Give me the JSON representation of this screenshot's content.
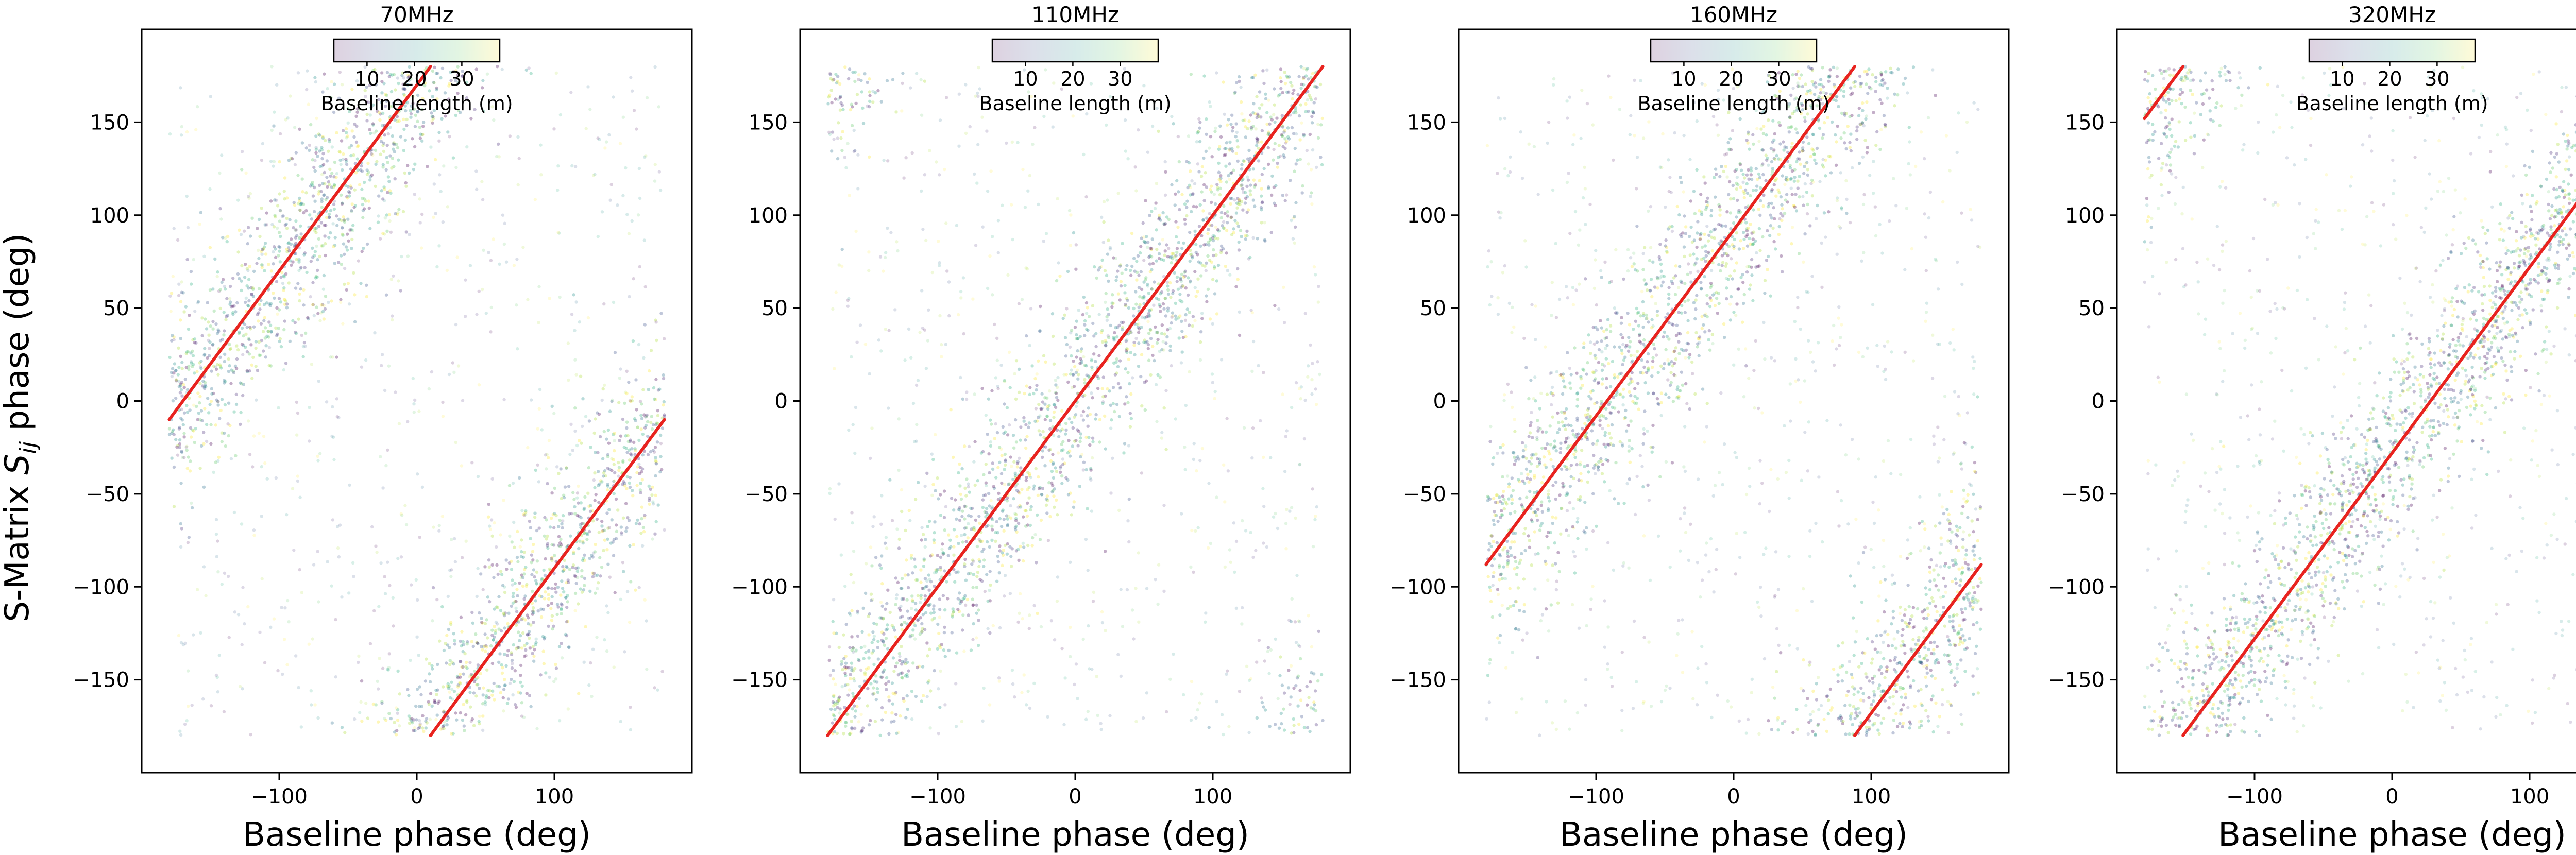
{
  "chart_data": [
    {
      "type": "scatter",
      "title": "70MHz",
      "xlabel": "Baseline phase (deg)",
      "ylabel": "S-Matrix $S_{ij}$ phase (deg)",
      "ylabel_text": {
        "main": "S-Matrix ",
        "symbol": "S",
        "sub": "ij",
        "tail": " phase (deg)"
      },
      "xlim": [
        -200,
        200
      ],
      "ylim": [
        -200,
        200
      ],
      "xticks": [
        -100,
        0,
        100
      ],
      "xtick_labels": [
        "−100",
        "0",
        "100"
      ],
      "yticks": [
        -150,
        -100,
        -50,
        0,
        50,
        100,
        150
      ],
      "ytick_labels": [
        "−150",
        "−100",
        "−50",
        "0",
        "50",
        "100",
        "150"
      ],
      "fit_line": {
        "slope": 1,
        "offset": 170,
        "wrap": 360,
        "color": "#e8231f"
      },
      "scatter_spread_deg": 28,
      "colorbar": {
        "label": "Baseline length (m)",
        "ticks": [
          10,
          20,
          30
        ],
        "range": [
          3,
          38
        ],
        "cmap": "viridis",
        "location": "upper center"
      }
    },
    {
      "type": "scatter",
      "title": "110MHz",
      "xlabel": "Baseline phase (deg)",
      "ylabel": "",
      "xlim": [
        -200,
        200
      ],
      "ylim": [
        -200,
        200
      ],
      "xticks": [
        -100,
        0,
        100
      ],
      "xtick_labels": [
        "−100",
        "0",
        "100"
      ],
      "yticks": [
        -150,
        -100,
        -50,
        0,
        50,
        100,
        150
      ],
      "ytick_labels": [
        "−150",
        "−100",
        "−50",
        "0",
        "50",
        "100",
        "150"
      ],
      "fit_line": {
        "slope": 1,
        "offset": 0,
        "wrap": 360,
        "color": "#e8231f"
      },
      "scatter_spread_deg": 28,
      "colorbar": {
        "label": "Baseline length (m)",
        "ticks": [
          10,
          20,
          30
        ],
        "range": [
          3,
          38
        ],
        "cmap": "viridis",
        "location": "upper center"
      }
    },
    {
      "type": "scatter",
      "title": "160MHz",
      "xlabel": "Baseline phase (deg)",
      "ylabel": "",
      "xlim": [
        -200,
        200
      ],
      "ylim": [
        -200,
        200
      ],
      "xticks": [
        -100,
        0,
        100
      ],
      "xtick_labels": [
        "−100",
        "0",
        "100"
      ],
      "yticks": [
        -150,
        -100,
        -50,
        0,
        50,
        100,
        150
      ],
      "ytick_labels": [
        "−150",
        "−100",
        "−50",
        "0",
        "50",
        "100",
        "150"
      ],
      "fit_line": {
        "slope": 1,
        "offset": 92,
        "wrap": 360,
        "color": "#e8231f"
      },
      "scatter_spread_deg": 28,
      "colorbar": {
        "label": "Baseline length (m)",
        "ticks": [
          10,
          20,
          30
        ],
        "range": [
          3,
          38
        ],
        "cmap": "viridis",
        "location": "upper center"
      }
    },
    {
      "type": "scatter",
      "title": "320MHz",
      "xlabel": "Baseline phase (deg)",
      "ylabel": "",
      "xlim": [
        -200,
        200
      ],
      "ylim": [
        -200,
        200
      ],
      "xticks": [
        -100,
        0,
        100
      ],
      "xtick_labels": [
        "−100",
        "0",
        "100"
      ],
      "yticks": [
        -150,
        -100,
        -50,
        0,
        50,
        100,
        150
      ],
      "ytick_labels": [
        "−150",
        "−100",
        "−50",
        "0",
        "50",
        "100",
        "150"
      ],
      "fit_line": {
        "slope": 1,
        "offset": -28,
        "wrap": 360,
        "color": "#e8231f"
      },
      "scatter_spread_deg": 28,
      "colorbar": {
        "label": "Baseline length (m)",
        "ticks": [
          10,
          20,
          30
        ],
        "range": [
          3,
          38
        ],
        "cmap": "viridis",
        "location": "upper center"
      }
    }
  ]
}
